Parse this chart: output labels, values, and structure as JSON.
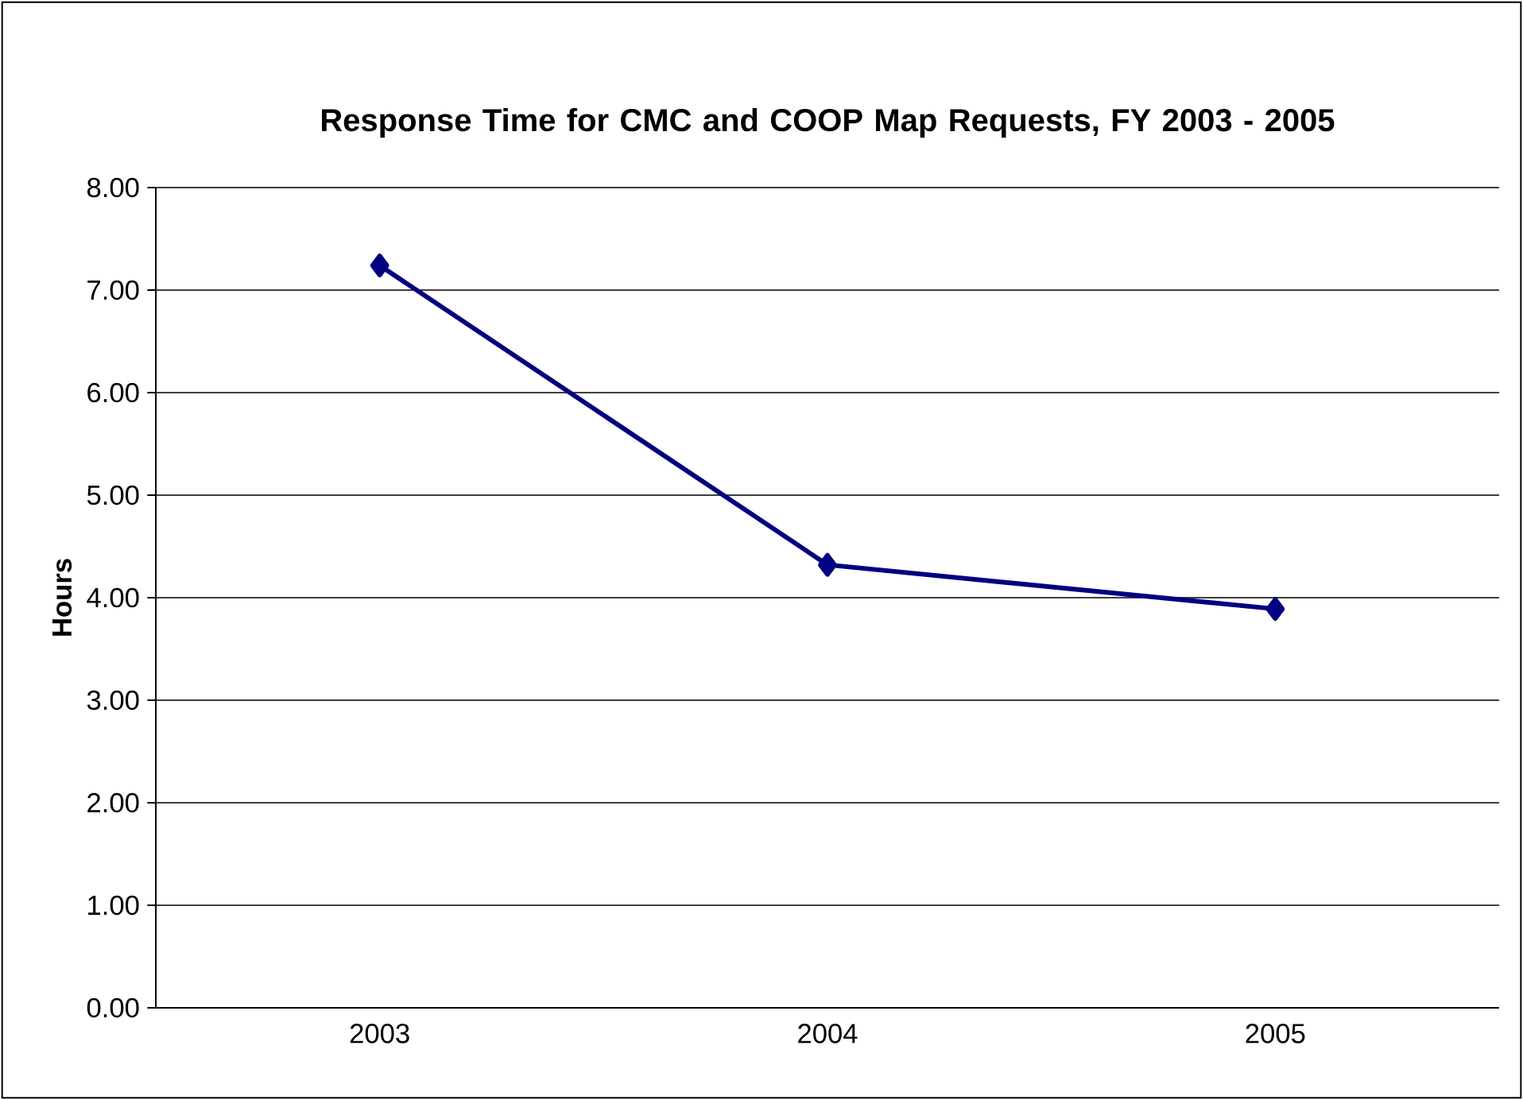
{
  "chart_data": {
    "type": "line",
    "title": "Response Time for CMC and COOP Map Requests, FY 2003 - 2005",
    "ylabel": "Hours",
    "categories": [
      "2003",
      "2004",
      "2005"
    ],
    "series": [
      {
        "color": "#000080",
        "values": [
          7.24,
          4.32,
          3.89
        ]
      }
    ],
    "ylim": [
      0,
      8
    ],
    "yticks": [
      {
        "value": 0,
        "label": "0.00"
      },
      {
        "value": 1,
        "label": "1.00"
      },
      {
        "value": 2,
        "label": "2.00"
      },
      {
        "value": 3,
        "label": "3.00"
      },
      {
        "value": 4,
        "label": "4.00"
      },
      {
        "value": 5,
        "label": "5.00"
      },
      {
        "value": 6,
        "label": "6.00"
      },
      {
        "value": 7,
        "label": "7.00"
      },
      {
        "value": 8,
        "label": "8.00"
      }
    ],
    "grid": "y",
    "marker": "diamond",
    "line_style": "solid"
  }
}
